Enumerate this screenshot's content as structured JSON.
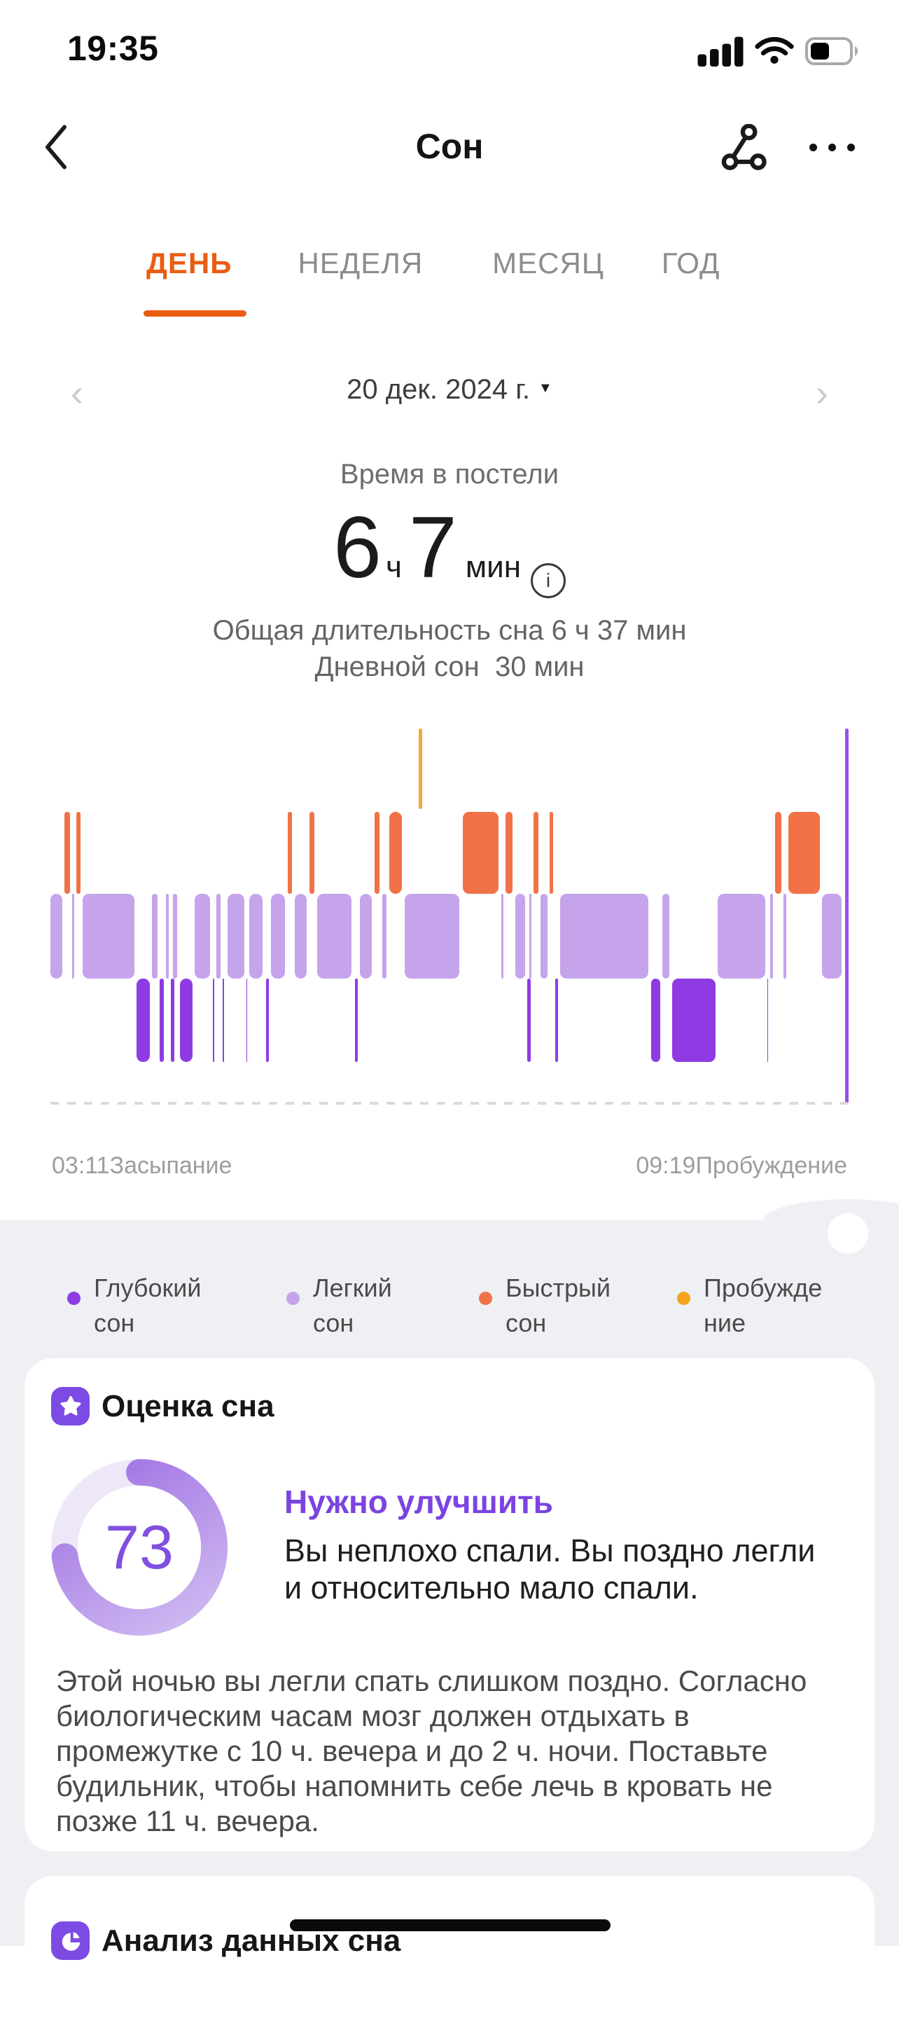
{
  "status_bar": {
    "time": "19:35"
  },
  "nav": {
    "title": "Сон"
  },
  "tabs": {
    "items": [
      {
        "label": "ДЕНЬ",
        "active": true
      },
      {
        "label": "НЕДЕЛЯ",
        "active": false
      },
      {
        "label": "МЕСЯЦ",
        "active": false
      },
      {
        "label": "ГОД",
        "active": false
      }
    ]
  },
  "date_nav": {
    "date": "20 дек. 2024 г."
  },
  "summary": {
    "label": "Время в постели",
    "hours": "6",
    "hours_unit": "ч",
    "minutes": "7",
    "minutes_unit": "мин",
    "total_sleep": "Общая длительность сна 6 ч 37 мин",
    "day_nap": "Дневной сон  30 мин"
  },
  "chart_data": {
    "type": "timeline",
    "subtype": "sleep-hypnogram",
    "x_range": [
      "03:11",
      "09:19"
    ],
    "rows": [
      "Пробуждение",
      "Быстрый сон",
      "Легкий сон",
      "Глубокий сон"
    ],
    "colors": {
      "deep": "#8F3BE4",
      "light": "#C5A4EB",
      "rem": "#F07246",
      "awake": "#F3A73C",
      "end_marker": "#9750EC"
    },
    "awake_marker_pct": 46.2,
    "end_marker_pct": 99.7,
    "segments": [
      [
        "light",
        0,
        1.76
      ],
      [
        "rem",
        1.76,
        2.72
      ],
      [
        "light",
        2.72,
        3.25
      ],
      [
        "rem",
        3.25,
        4.04
      ],
      [
        "light",
        4.04,
        10.81
      ],
      [
        "deep",
        10.81,
        12.74
      ],
      [
        "light",
        12.74,
        13.71
      ],
      [
        "deep",
        13.71,
        14.5
      ],
      [
        "light",
        14.5,
        15.11
      ],
      [
        "deep",
        15.11,
        15.38
      ],
      [
        "light",
        15.38,
        16.17
      ],
      [
        "deep",
        16.26,
        18.1
      ],
      [
        "light",
        18.1,
        20.3
      ],
      [
        "deep",
        20.39,
        20.83
      ],
      [
        "light",
        20.83,
        21.62
      ],
      [
        "deep",
        21.62,
        22.06
      ],
      [
        "light",
        22.23,
        24.6
      ],
      [
        "deep",
        24.6,
        24.96
      ],
      [
        "light",
        24.96,
        26.89
      ],
      [
        "deep",
        27.07,
        27.68
      ],
      [
        "light",
        27.68,
        29.7
      ],
      [
        "rem",
        29.79,
        30.58
      ],
      [
        "light",
        30.67,
        32.43
      ],
      [
        "rem",
        32.51,
        33.39
      ],
      [
        "light",
        33.48,
        38.05
      ],
      [
        "deep",
        38.22,
        38.84
      ],
      [
        "light",
        38.84,
        40.6
      ],
      [
        "rem",
        40.69,
        41.56
      ],
      [
        "light",
        41.65,
        42.44
      ],
      [
        "rem",
        42.53,
        44.38
      ],
      [
        "light",
        44.46,
        51.58
      ],
      [
        "rem",
        51.76,
        56.5
      ],
      [
        "light",
        56.59,
        57.12
      ],
      [
        "rem",
        57.12,
        58.26
      ],
      [
        "light",
        58.35,
        59.84
      ],
      [
        "deep",
        59.84,
        60.11
      ],
      [
        "light",
        60.11,
        60.63
      ],
      [
        "rem",
        60.63,
        61.51
      ],
      [
        "light",
        61.51,
        62.65
      ],
      [
        "rem",
        62.65,
        63.36
      ],
      [
        "deep",
        63.36,
        63.97
      ],
      [
        "light",
        63.97,
        75.31
      ],
      [
        "deep",
        75.4,
        76.8
      ],
      [
        "light",
        76.8,
        77.94
      ],
      [
        "deep",
        78.03,
        83.74
      ],
      [
        "light",
        83.74,
        89.98
      ],
      [
        "deep",
        89.98,
        90.33
      ],
      [
        "light",
        90.33,
        90.95
      ],
      [
        "rem",
        90.95,
        92.0
      ],
      [
        "light",
        92.0,
        92.62
      ],
      [
        "rem",
        92.62,
        96.84
      ],
      [
        "light",
        96.84,
        99.56
      ]
    ]
  },
  "timeline_labels": {
    "start_time": "03:11",
    "start_label": "Засыпание",
    "end_time": "09:19",
    "end_label": "Пробуждение"
  },
  "legend": {
    "items": [
      {
        "line1": "Глубокий",
        "line2": "сон",
        "color": "#8F3BE4"
      },
      {
        "line1": "Легкий",
        "line2": "сон",
        "color": "#C5A4EB"
      },
      {
        "line1": "Быстрый",
        "line2": "сон",
        "color": "#F07246"
      },
      {
        "line1": "Пробужде",
        "line2": "ние",
        "color": "#F5A41E"
      }
    ]
  },
  "score_card": {
    "title": "Оценка сна",
    "score": "73",
    "status": "Нужно улучшить",
    "summary": "Вы неплохо спали. Вы поздно легли и относительно мало спали.",
    "advice": "Этой ночью вы легли спать слишком поздно. Согласно биологическим часам мозг должен отдыхать в промежутке с 10 ч. вечера и до 2 ч. ночи. Поставьте будильник, чтобы напомнить себе лечь в кровать не позже 11 ч. вечера."
  },
  "analysis_card": {
    "title": "Анализ данных сна"
  },
  "colors": {
    "accent_orange": "#EA5C12",
    "score_purple": "#8150DE",
    "status_purple": "#7B44E1",
    "icon_purple": "#7C4BE4",
    "section_gray": "#EEF0F4"
  }
}
